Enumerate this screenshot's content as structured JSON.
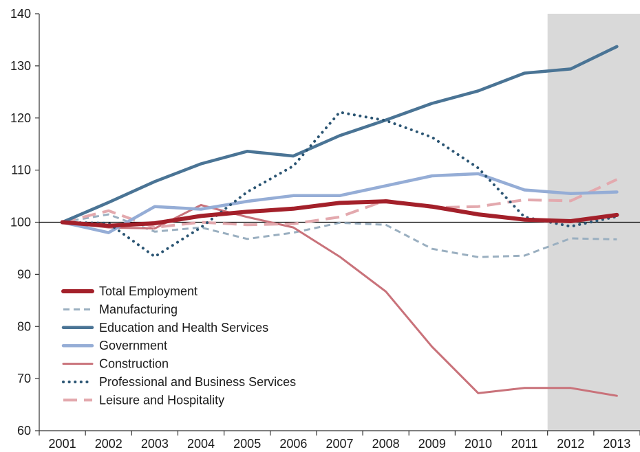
{
  "chart_data": {
    "type": "line",
    "title": "",
    "xlabel": "",
    "ylabel": "",
    "x": [
      "2001",
      "2002",
      "2003",
      "2004",
      "2005",
      "2006",
      "2007",
      "2008",
      "2009",
      "2010",
      "2011",
      "2012",
      "2013"
    ],
    "ylim": [
      60,
      140
    ],
    "yticks": [
      60,
      70,
      80,
      90,
      100,
      110,
      120,
      130,
      140
    ],
    "reference_line": 100,
    "shaded_range": [
      "2011",
      "2013"
    ],
    "shade_color": "#d9d9d9",
    "legend_position": "lower-left",
    "series": [
      {
        "name": "Total Employment",
        "color": "#a3202a",
        "style": "solid-thick",
        "values": [
          100,
          99.3,
          99.8,
          101.2,
          102.0,
          102.6,
          103.7,
          104.0,
          103.0,
          101.5,
          100.5,
          100.2,
          101.4
        ]
      },
      {
        "name": "Manufacturing",
        "color": "#9aafc0",
        "style": "dash",
        "values": [
          100,
          101.5,
          98.2,
          99.0,
          96.8,
          98.0,
          99.9,
          99.5,
          94.9,
          93.3,
          93.6,
          96.9,
          96.7
        ]
      },
      {
        "name": "Education and Health Services",
        "color": "#4a7495",
        "style": "solid",
        "values": [
          100,
          103.8,
          107.8,
          111.2,
          113.6,
          112.7,
          116.6,
          119.6,
          122.8,
          125.2,
          128.6,
          129.4,
          133.7
        ]
      },
      {
        "name": "Government",
        "color": "#95add6",
        "style": "solid",
        "values": [
          100,
          98.0,
          103.0,
          102.5,
          104.0,
          105.1,
          105.1,
          107.0,
          108.9,
          109.3,
          106.2,
          105.5,
          105.8
        ]
      },
      {
        "name": "Construction",
        "color": "#c9727a",
        "style": "solid-thin",
        "values": [
          100,
          99.0,
          98.8,
          103.3,
          101.0,
          99.0,
          93.4,
          86.7,
          76.1,
          67.2,
          68.2,
          68.2,
          66.7
        ]
      },
      {
        "name": "Professional and Business Services",
        "color": "#2b5573",
        "style": "dot",
        "values": [
          100,
          99.8,
          93.4,
          99.0,
          105.8,
          110.8,
          121.1,
          119.5,
          116.3,
          110.4,
          101.0,
          99.2,
          101.1
        ]
      },
      {
        "name": "Leisure and Hospitality",
        "color": "#e3a9ae",
        "style": "longdash",
        "values": [
          100,
          102.2,
          99.0,
          100.0,
          99.5,
          99.7,
          101.0,
          104.2,
          102.8,
          103.0,
          104.3,
          104.1,
          108.2
        ]
      }
    ]
  }
}
